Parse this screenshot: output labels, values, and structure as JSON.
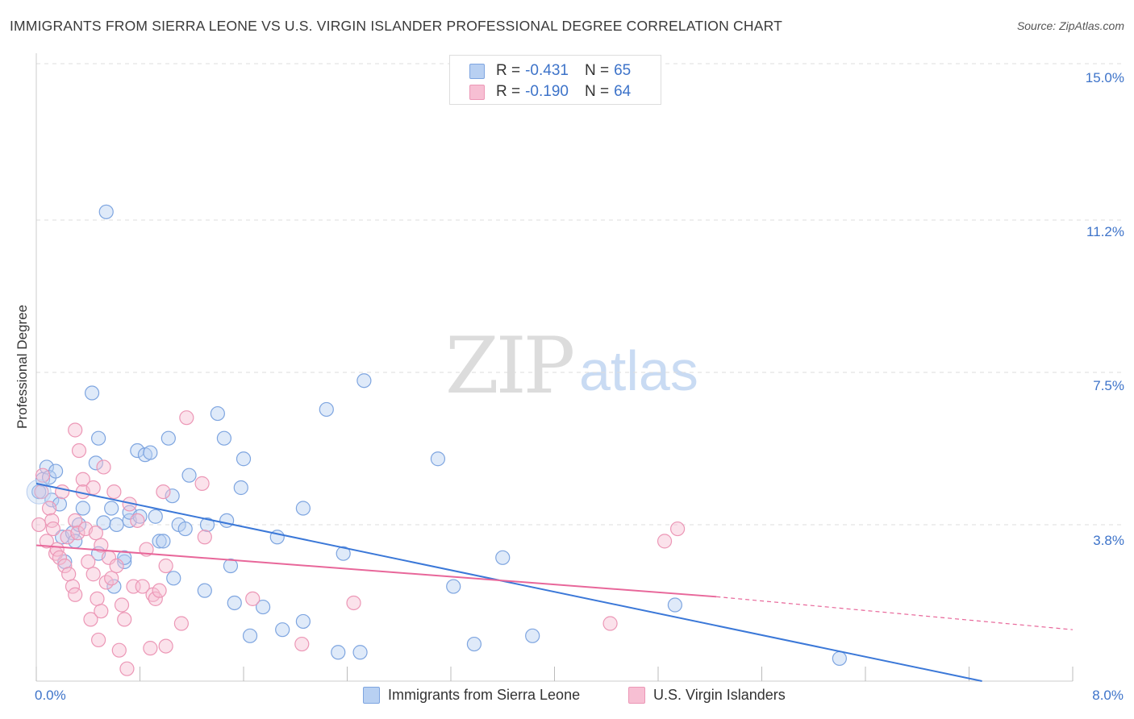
{
  "title": "IMMIGRANTS FROM SIERRA LEONE VS U.S. VIRGIN ISLANDER PROFESSIONAL DEGREE CORRELATION CHART",
  "source": "Source: ZipAtlas.com",
  "watermark": {
    "zip": "ZIP",
    "atlas": "atlas"
  },
  "legend": {
    "rows": [
      {
        "r_label": "R =",
        "r_value": "-0.431",
        "n_label": "N =",
        "n_value": "65"
      },
      {
        "r_label": "R =",
        "r_value": "-0.190",
        "n_label": "N =",
        "n_value": "64"
      }
    ]
  },
  "colors": {
    "blue": "#3b78d8",
    "blue_fill": "#b8d0f2",
    "pink": "#e8679a",
    "pink_fill": "#f7bfd3",
    "tick_text": "#3d73c9"
  },
  "chart_data": {
    "type": "scatter",
    "title": "IMMIGRANTS FROM SIERRA LEONE VS U.S. VIRGIN ISLANDER PROFESSIONAL DEGREE CORRELATION CHART",
    "xlabel": "",
    "ylabel": "Professional Degree",
    "xlim": [
      0,
      8.0
    ],
    "ylim": [
      0,
      15.0
    ],
    "x_tick_labels": [
      "0.0%",
      "8.0%"
    ],
    "y_ticks": [
      3.8,
      7.5,
      11.2,
      15.0
    ],
    "y_tick_labels": [
      "3.8%",
      "7.5%",
      "11.2%",
      "15.0%"
    ],
    "grid": true,
    "legend_position": "top-center and bottom",
    "series": [
      {
        "name": "Immigrants from Sierra Leone",
        "color": "#3b78d8",
        "trend": {
          "x": [
            0.0,
            7.3
          ],
          "y": [
            4.8,
            0.0
          ]
        },
        "points": [
          [
            0.02,
            4.6
          ],
          [
            0.05,
            4.9
          ],
          [
            0.08,
            5.2
          ],
          [
            0.1,
            4.95
          ],
          [
            0.15,
            5.1
          ],
          [
            0.12,
            4.4
          ],
          [
            0.18,
            4.3
          ],
          [
            0.2,
            3.5
          ],
          [
            0.28,
            3.6
          ],
          [
            0.3,
            3.4
          ],
          [
            0.22,
            2.9
          ],
          [
            0.33,
            3.8
          ],
          [
            0.36,
            4.2
          ],
          [
            0.48,
            3.1
          ],
          [
            0.43,
            7.0
          ],
          [
            0.48,
            5.9
          ],
          [
            0.46,
            5.3
          ],
          [
            0.52,
            3.85
          ],
          [
            0.58,
            4.2
          ],
          [
            0.6,
            2.3
          ],
          [
            0.62,
            3.8
          ],
          [
            0.68,
            2.9
          ],
          [
            0.68,
            3.0
          ],
          [
            0.72,
            3.9
          ],
          [
            0.72,
            4.1
          ],
          [
            0.78,
            5.6
          ],
          [
            0.8,
            4.0
          ],
          [
            0.84,
            5.5
          ],
          [
            0.88,
            5.55
          ],
          [
            0.92,
            4.0
          ],
          [
            0.95,
            3.4
          ],
          [
            0.98,
            3.4
          ],
          [
            1.02,
            5.9
          ],
          [
            1.05,
            4.5
          ],
          [
            1.06,
            2.5
          ],
          [
            1.1,
            3.8
          ],
          [
            1.15,
            3.7
          ],
          [
            1.18,
            5.0
          ],
          [
            1.3,
            2.2
          ],
          [
            1.32,
            3.8
          ],
          [
            1.4,
            6.5
          ],
          [
            1.45,
            5.9
          ],
          [
            1.47,
            3.9
          ],
          [
            1.5,
            2.8
          ],
          [
            1.53,
            1.9
          ],
          [
            1.58,
            4.7
          ],
          [
            1.6,
            5.4
          ],
          [
            1.65,
            1.1
          ],
          [
            1.75,
            1.8
          ],
          [
            1.86,
            3.5
          ],
          [
            1.9,
            1.25
          ],
          [
            2.06,
            1.45
          ],
          [
            2.06,
            4.2
          ],
          [
            2.24,
            6.6
          ],
          [
            2.33,
            0.7
          ],
          [
            2.37,
            3.1
          ],
          [
            2.5,
            0.7
          ],
          [
            2.53,
            7.3
          ],
          [
            3.1,
            5.4
          ],
          [
            3.22,
            2.3
          ],
          [
            3.38,
            0.9
          ],
          [
            3.6,
            3.0
          ],
          [
            3.83,
            1.1
          ],
          [
            4.93,
            1.85
          ],
          [
            6.2,
            0.55
          ],
          [
            0.54,
            11.4
          ]
        ]
      },
      {
        "name": "U.S. Virgin Islanders",
        "color": "#e8679a",
        "trend": {
          "x": [
            0.0,
            5.25
          ],
          "y": [
            3.3,
            2.05
          ]
        },
        "trend_dashed": {
          "x": [
            5.25,
            8.0
          ],
          "y": [
            2.05,
            1.25
          ]
        },
        "points": [
          [
            0.02,
            3.8
          ],
          [
            0.04,
            4.6
          ],
          [
            0.05,
            5.0
          ],
          [
            0.08,
            3.4
          ],
          [
            0.1,
            4.2
          ],
          [
            0.12,
            3.9
          ],
          [
            0.13,
            3.7
          ],
          [
            0.15,
            3.1
          ],
          [
            0.16,
            3.2
          ],
          [
            0.18,
            3.0
          ],
          [
            0.2,
            4.6
          ],
          [
            0.22,
            2.8
          ],
          [
            0.24,
            3.5
          ],
          [
            0.25,
            2.6
          ],
          [
            0.28,
            2.3
          ],
          [
            0.3,
            2.1
          ],
          [
            0.3,
            3.9
          ],
          [
            0.32,
            3.6
          ],
          [
            0.3,
            6.1
          ],
          [
            0.33,
            5.6
          ],
          [
            0.36,
            4.9
          ],
          [
            0.36,
            4.6
          ],
          [
            0.38,
            3.7
          ],
          [
            0.4,
            2.9
          ],
          [
            0.42,
            1.5
          ],
          [
            0.44,
            4.7
          ],
          [
            0.44,
            2.6
          ],
          [
            0.46,
            3.6
          ],
          [
            0.47,
            2.0
          ],
          [
            0.48,
            1.0
          ],
          [
            0.5,
            1.7
          ],
          [
            0.5,
            3.3
          ],
          [
            0.52,
            5.2
          ],
          [
            0.54,
            2.4
          ],
          [
            0.56,
            3.0
          ],
          [
            0.58,
            2.5
          ],
          [
            0.6,
            4.6
          ],
          [
            0.62,
            2.8
          ],
          [
            0.64,
            0.75
          ],
          [
            0.66,
            1.85
          ],
          [
            0.68,
            1.5
          ],
          [
            0.7,
            0.3
          ],
          [
            0.72,
            4.3
          ],
          [
            0.75,
            2.3
          ],
          [
            0.78,
            3.9
          ],
          [
            0.82,
            2.3
          ],
          [
            0.85,
            3.2
          ],
          [
            0.88,
            0.8
          ],
          [
            0.9,
            2.1
          ],
          [
            0.92,
            2.0
          ],
          [
            0.95,
            2.2
          ],
          [
            0.98,
            4.6
          ],
          [
            1.0,
            2.8
          ],
          [
            1.0,
            0.85
          ],
          [
            1.12,
            1.4
          ],
          [
            1.16,
            6.4
          ],
          [
            1.28,
            4.8
          ],
          [
            1.3,
            3.5
          ],
          [
            1.67,
            2.0
          ],
          [
            2.05,
            0.9
          ],
          [
            2.45,
            1.9
          ],
          [
            4.43,
            1.4
          ],
          [
            4.85,
            3.4
          ],
          [
            4.95,
            3.7
          ]
        ]
      }
    ]
  },
  "bottom_legend": [
    {
      "label": "Immigrants from Sierra Leone"
    },
    {
      "label": "U.S. Virgin Islanders"
    }
  ]
}
